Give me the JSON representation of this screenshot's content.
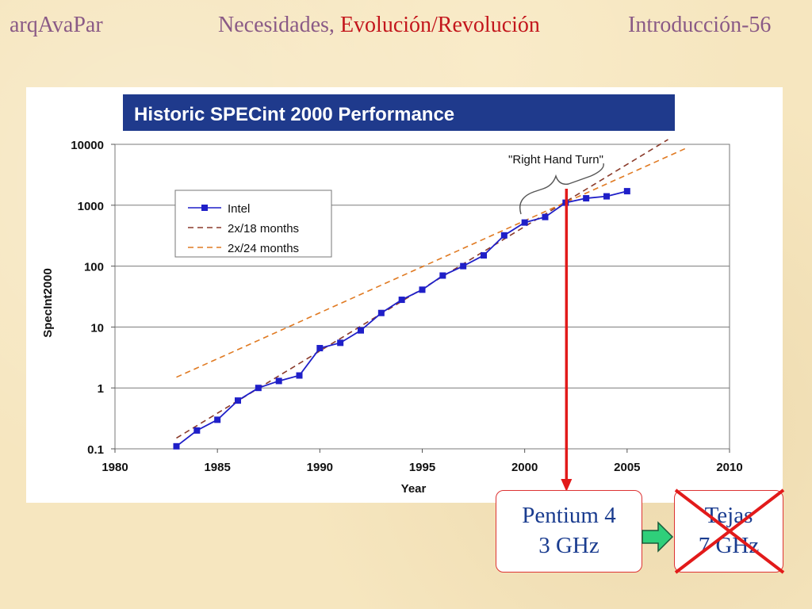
{
  "header": {
    "left": "arqAvaPar",
    "middle_part1": "Necesidades, ",
    "middle_part2": "Evolución/Revolución",
    "right": "Introducción-56"
  },
  "chart_data": {
    "type": "line",
    "title": "Historic SPECint 2000 Performance",
    "xlabel": "Year",
    "ylabel": "SpecInt2000",
    "xlim": [
      1980,
      2010
    ],
    "ylim": [
      0.1,
      10000
    ],
    "yscale": "log",
    "x_ticks": [
      "1980",
      "1985",
      "1990",
      "1995",
      "2000",
      "2005",
      "2010"
    ],
    "y_ticks": [
      "0.1",
      "1",
      "10",
      "100",
      "1000",
      "10000"
    ],
    "grid": "horizontal",
    "legend": "upper-left",
    "series": [
      {
        "name": "Intel",
        "color": "#1f1fc8",
        "x": [
          1983,
          1984,
          1985,
          1986,
          1987,
          1988,
          1989,
          1990,
          1991,
          1992,
          1993,
          1994,
          1995,
          1996,
          1997,
          1998,
          1999,
          2000,
          2001,
          2002,
          2003,
          2004,
          2005
        ],
        "y": [
          0.11,
          0.2,
          0.3,
          0.62,
          1.0,
          1.3,
          1.6,
          4.5,
          5.5,
          8.8,
          17,
          28,
          41,
          70,
          100,
          150,
          320,
          520,
          640,
          1100,
          1300,
          1400,
          1700
        ]
      },
      {
        "name": "2x/18 months",
        "color": "#8a3a2a",
        "dashed": true,
        "x": [
          1983,
          2007
        ],
        "y": [
          0.15,
          12000
        ]
      },
      {
        "name": "2x/24 months",
        "color": "#e07a22",
        "dashed": true,
        "x": [
          1983,
          2008
        ],
        "y": [
          1.5,
          9000
        ]
      }
    ],
    "annotations": [
      "\"Right Hand Turn\""
    ]
  },
  "boxes": {
    "pentium_line1": "Pentium 4",
    "pentium_line2": "3 GHz",
    "tejas_line1": "Tejas",
    "tejas_line2": "7 GHz"
  }
}
